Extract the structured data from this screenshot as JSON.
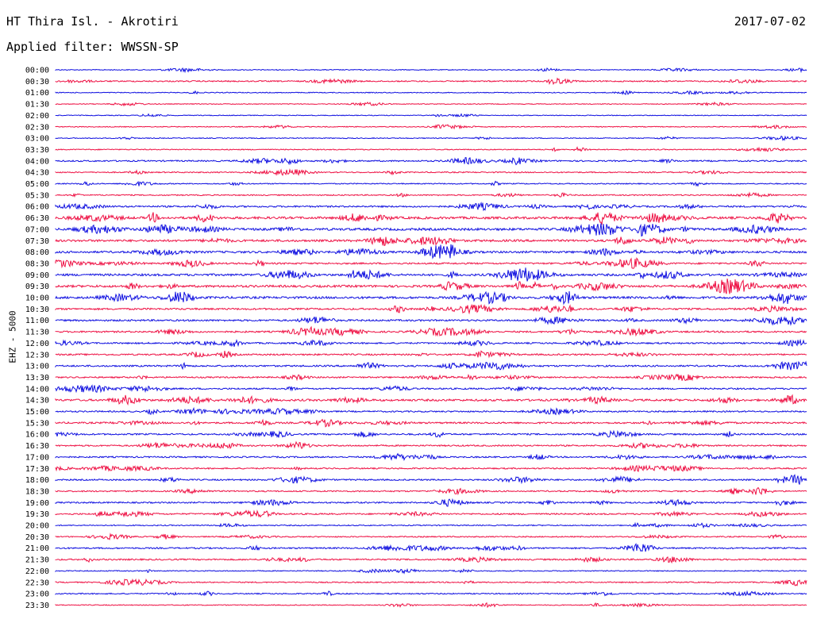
{
  "header": {
    "station": "HT Thira Isl. - Akrotiri",
    "date": "2017-07-02",
    "filter_label": "Applied filter: WWSSN-SP"
  },
  "channel_label": "EHZ - 5000",
  "colors": {
    "blue": "#1010e0",
    "red": "#ee1144"
  },
  "rows": [
    {
      "time": "00:00",
      "color": "blue",
      "activity": 0.15
    },
    {
      "time": "00:30",
      "color": "red",
      "activity": 0.35
    },
    {
      "time": "01:00",
      "color": "blue",
      "activity": 0.15
    },
    {
      "time": "01:30",
      "color": "red",
      "activity": 0.1
    },
    {
      "time": "02:00",
      "color": "blue",
      "activity": 0.1
    },
    {
      "time": "02:30",
      "color": "red",
      "activity": 0.15
    },
    {
      "time": "03:00",
      "color": "blue",
      "activity": 0.15
    },
    {
      "time": "03:30",
      "color": "red",
      "activity": 0.2
    },
    {
      "time": "04:00",
      "color": "blue",
      "activity": 0.45
    },
    {
      "time": "04:30",
      "color": "red",
      "activity": 0.3
    },
    {
      "time": "05:00",
      "color": "blue",
      "activity": 0.25
    },
    {
      "time": "05:30",
      "color": "red",
      "activity": 0.3
    },
    {
      "time": "06:00",
      "color": "blue",
      "activity": 0.55
    },
    {
      "time": "06:30",
      "color": "red",
      "activity": 0.9
    },
    {
      "time": "07:00",
      "color": "blue",
      "activity": 0.9
    },
    {
      "time": "07:30",
      "color": "red",
      "activity": 0.8
    },
    {
      "time": "08:00",
      "color": "blue",
      "activity": 0.75
    },
    {
      "time": "08:30",
      "color": "red",
      "activity": 0.55
    },
    {
      "time": "09:00",
      "color": "blue",
      "activity": 0.8
    },
    {
      "time": "09:30",
      "color": "red",
      "activity": 0.85
    },
    {
      "time": "10:00",
      "color": "blue",
      "activity": 0.85
    },
    {
      "time": "10:30",
      "color": "red",
      "activity": 0.6
    },
    {
      "time": "11:00",
      "color": "blue",
      "activity": 0.6
    },
    {
      "time": "11:30",
      "color": "red",
      "activity": 0.55
    },
    {
      "time": "12:00",
      "color": "blue",
      "activity": 0.5
    },
    {
      "time": "12:30",
      "color": "red",
      "activity": 0.5
    },
    {
      "time": "13:00",
      "color": "blue",
      "activity": 0.55
    },
    {
      "time": "13:30",
      "color": "red",
      "activity": 0.45
    },
    {
      "time": "14:00",
      "color": "blue",
      "activity": 0.5
    },
    {
      "time": "14:30",
      "color": "red",
      "activity": 0.75
    },
    {
      "time": "15:00",
      "color": "blue",
      "activity": 0.45
    },
    {
      "time": "15:30",
      "color": "red",
      "activity": 0.55
    },
    {
      "time": "16:00",
      "color": "blue",
      "activity": 0.5
    },
    {
      "time": "16:30",
      "color": "red",
      "activity": 0.45
    },
    {
      "time": "17:00",
      "color": "blue",
      "activity": 0.45
    },
    {
      "time": "17:30",
      "color": "red",
      "activity": 0.4
    },
    {
      "time": "18:00",
      "color": "blue",
      "activity": 0.45
    },
    {
      "time": "18:30",
      "color": "red",
      "activity": 0.4
    },
    {
      "time": "19:00",
      "color": "blue",
      "activity": 0.45
    },
    {
      "time": "19:30",
      "color": "red",
      "activity": 0.45
    },
    {
      "time": "20:00",
      "color": "blue",
      "activity": 0.25
    },
    {
      "time": "20:30",
      "color": "red",
      "activity": 0.3
    },
    {
      "time": "21:00",
      "color": "blue",
      "activity": 0.45
    },
    {
      "time": "21:30",
      "color": "red",
      "activity": 0.45
    },
    {
      "time": "22:00",
      "color": "blue",
      "activity": 0.2
    },
    {
      "time": "22:30",
      "color": "red",
      "activity": 0.3
    },
    {
      "time": "23:00",
      "color": "blue",
      "activity": 0.3
    },
    {
      "time": "23:30",
      "color": "red",
      "activity": 0.15
    }
  ]
}
